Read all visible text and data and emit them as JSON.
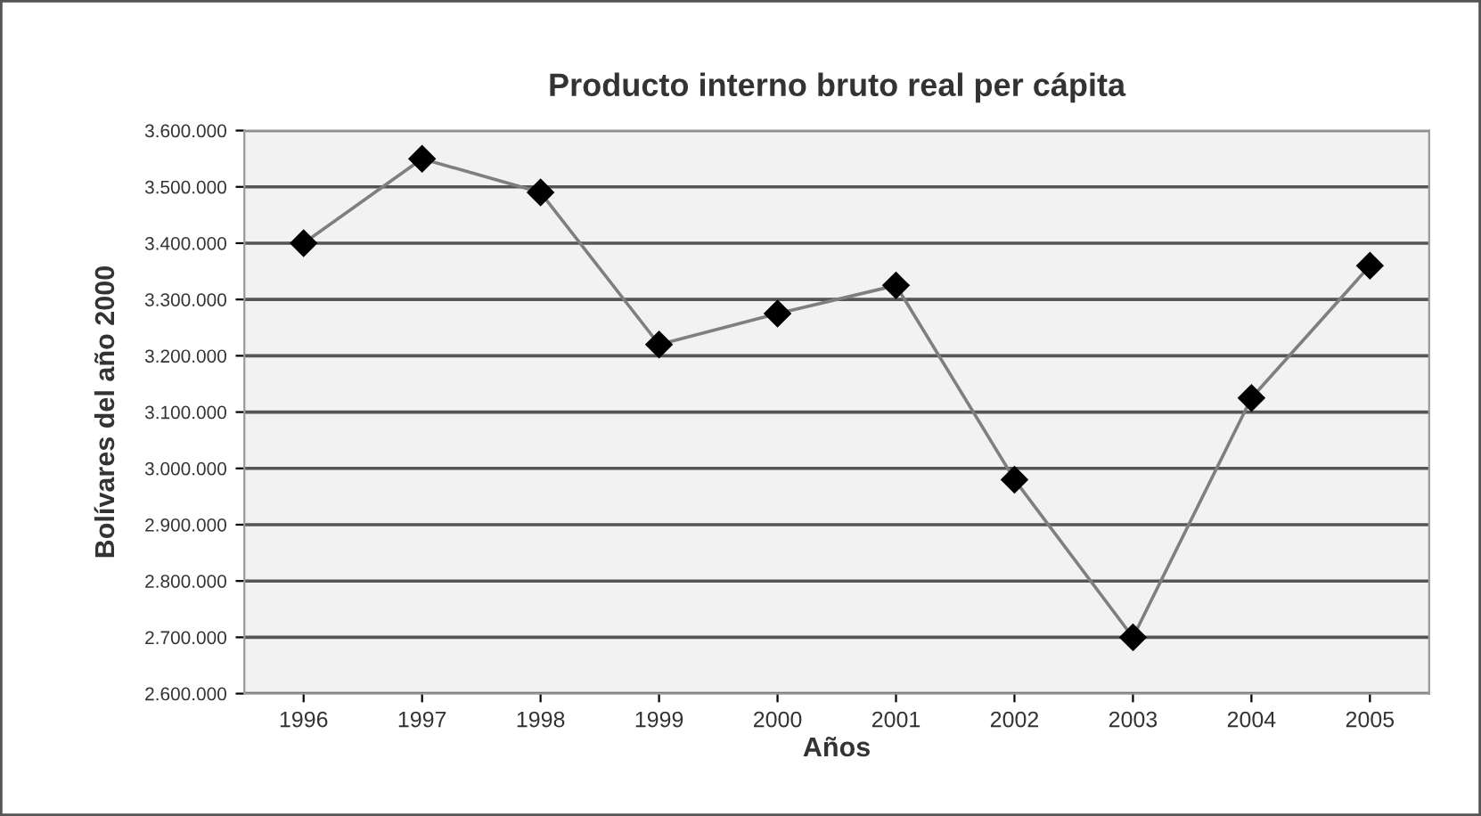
{
  "chart_data": {
    "type": "line",
    "title": "Producto interno bruto real per cápita",
    "xlabel": "Años",
    "ylabel": "Bolívares del año 2000",
    "categories": [
      "1996",
      "1997",
      "1998",
      "1999",
      "2000",
      "2001",
      "2002",
      "2003",
      "2004",
      "2005"
    ],
    "series": [
      {
        "color": "#7f7f7f",
        "values": [
          3400000,
          3550000,
          3490000,
          3220000,
          3275000,
          3325000,
          2980000,
          2700000,
          3125000,
          3360000
        ]
      }
    ],
    "ylim": [
      2600000,
      3600000
    ],
    "yticks": [
      {
        "value": 2600000,
        "label": "2.600.000"
      },
      {
        "value": 2700000,
        "label": "2.700.000"
      },
      {
        "value": 2800000,
        "label": "2.800.000"
      },
      {
        "value": 2900000,
        "label": "2.900.000"
      },
      {
        "value": 3000000,
        "label": "3.000.000"
      },
      {
        "value": 3100000,
        "label": "3.100.000"
      },
      {
        "value": 3200000,
        "label": "3.200.000"
      },
      {
        "value": 3300000,
        "label": "3.300.000"
      },
      {
        "value": 3400000,
        "label": "3.400.000"
      },
      {
        "value": 3500000,
        "label": "3.500.000"
      },
      {
        "value": 3600000,
        "label": "3.600.000"
      }
    ],
    "grid": "y",
    "marker": "diamond",
    "line_style": "solid"
  }
}
